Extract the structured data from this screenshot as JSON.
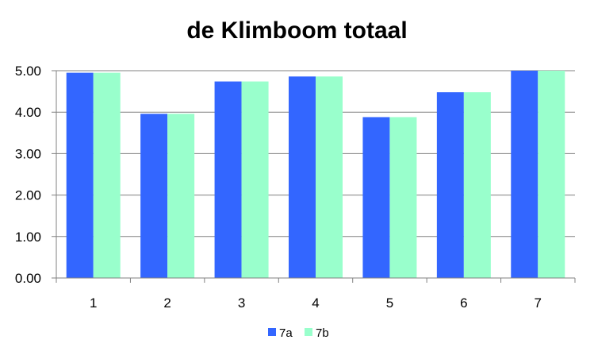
{
  "chart_data": {
    "type": "bar",
    "title": "de Klimboom totaal",
    "xlabel": "",
    "ylabel": "",
    "categories": [
      "1",
      "2",
      "3",
      "4",
      "5",
      "6",
      "7"
    ],
    "series": [
      {
        "name": "7a",
        "color": "#3366ff",
        "values": [
          4.95,
          3.96,
          4.74,
          4.86,
          3.88,
          4.48,
          5.0
        ]
      },
      {
        "name": "7b",
        "color": "#99ffcc",
        "values": [
          4.95,
          3.96,
          4.74,
          4.86,
          3.88,
          4.48,
          5.0
        ]
      }
    ],
    "ylim": [
      0,
      5
    ],
    "yticks": [
      "0.00",
      "1.00",
      "2.00",
      "3.00",
      "4.00",
      "5.00"
    ],
    "grid": true,
    "gridlines_color": "#808080",
    "legend_position": "bottom"
  }
}
